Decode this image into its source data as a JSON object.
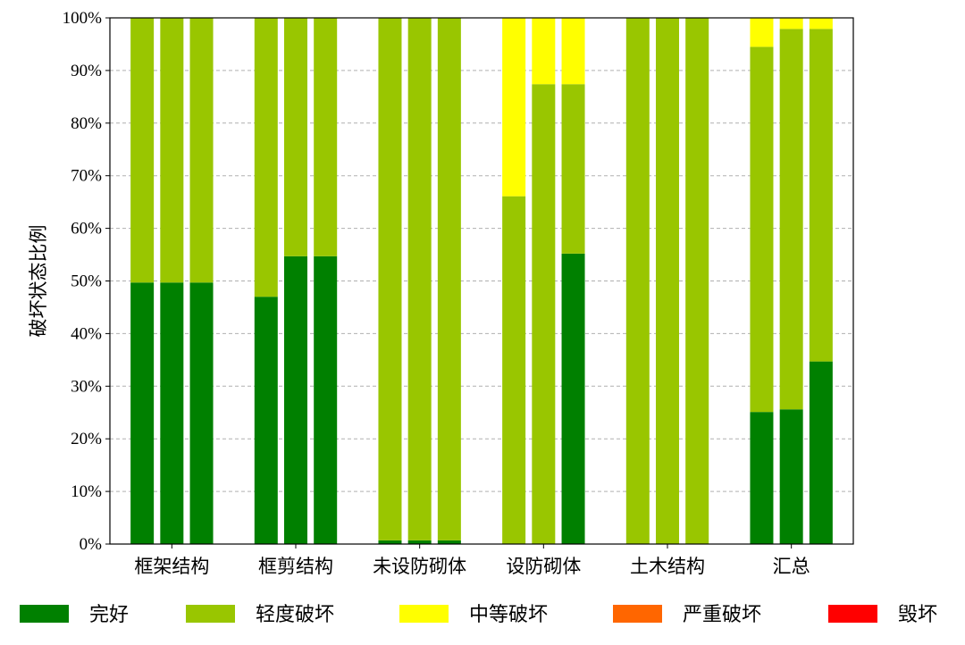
{
  "chart_data": {
    "type": "bar",
    "stacked": true,
    "bars_per_group": 3,
    "categories": [
      "框架结构",
      "框剪结构",
      "未设防砌体",
      "设防砌体",
      "土木结构",
      "汇总"
    ],
    "ylabel": "破坏状态比例",
    "ylim": [
      0,
      100
    ],
    "y_ticks": [
      "0%",
      "10%",
      "20%",
      "30%",
      "40%",
      "50%",
      "60%",
      "70%",
      "80%",
      "90%",
      "100%"
    ],
    "grid": "horizontal dashed",
    "legend_position": "bottom",
    "series": [
      {
        "name": "完好",
        "color": "#008000",
        "values": [
          [
            49.7,
            49.7,
            49.7
          ],
          [
            47.0,
            54.7,
            54.7
          ],
          [
            0.7,
            0.7,
            0.7
          ],
          [
            0,
            0,
            55.2
          ],
          [
            0,
            0,
            0
          ],
          [
            25.1,
            25.6,
            34.7
          ]
        ]
      },
      {
        "name": "轻度破坏",
        "color": "#99c600",
        "values": [
          [
            50.3,
            50.3,
            50.3
          ],
          [
            53.0,
            45.3,
            45.3
          ],
          [
            99.3,
            99.3,
            99.3
          ],
          [
            66.1,
            87.4,
            32.2
          ],
          [
            100,
            100,
            100
          ],
          [
            69.4,
            72.3,
            63.2
          ]
        ]
      },
      {
        "name": "中等破坏",
        "color": "#ffff00",
        "values": [
          [
            0,
            0,
            0
          ],
          [
            0,
            0,
            0
          ],
          [
            0,
            0,
            0
          ],
          [
            33.9,
            12.6,
            12.6
          ],
          [
            0,
            0,
            0
          ],
          [
            5.5,
            2.1,
            2.1
          ]
        ]
      },
      {
        "name": "严重破坏",
        "color": "#ff6600",
        "values": [
          [
            0,
            0,
            0
          ],
          [
            0,
            0,
            0
          ],
          [
            0,
            0,
            0
          ],
          [
            0,
            0,
            0
          ],
          [
            0,
            0,
            0
          ],
          [
            0,
            0,
            0
          ]
        ]
      },
      {
        "name": "毁坏",
        "color": "#ff0000",
        "values": [
          [
            0,
            0,
            0
          ],
          [
            0,
            0,
            0
          ],
          [
            0,
            0,
            0
          ],
          [
            0,
            0,
            0
          ],
          [
            0,
            0,
            0
          ],
          [
            0,
            0,
            0
          ]
        ]
      }
    ]
  }
}
